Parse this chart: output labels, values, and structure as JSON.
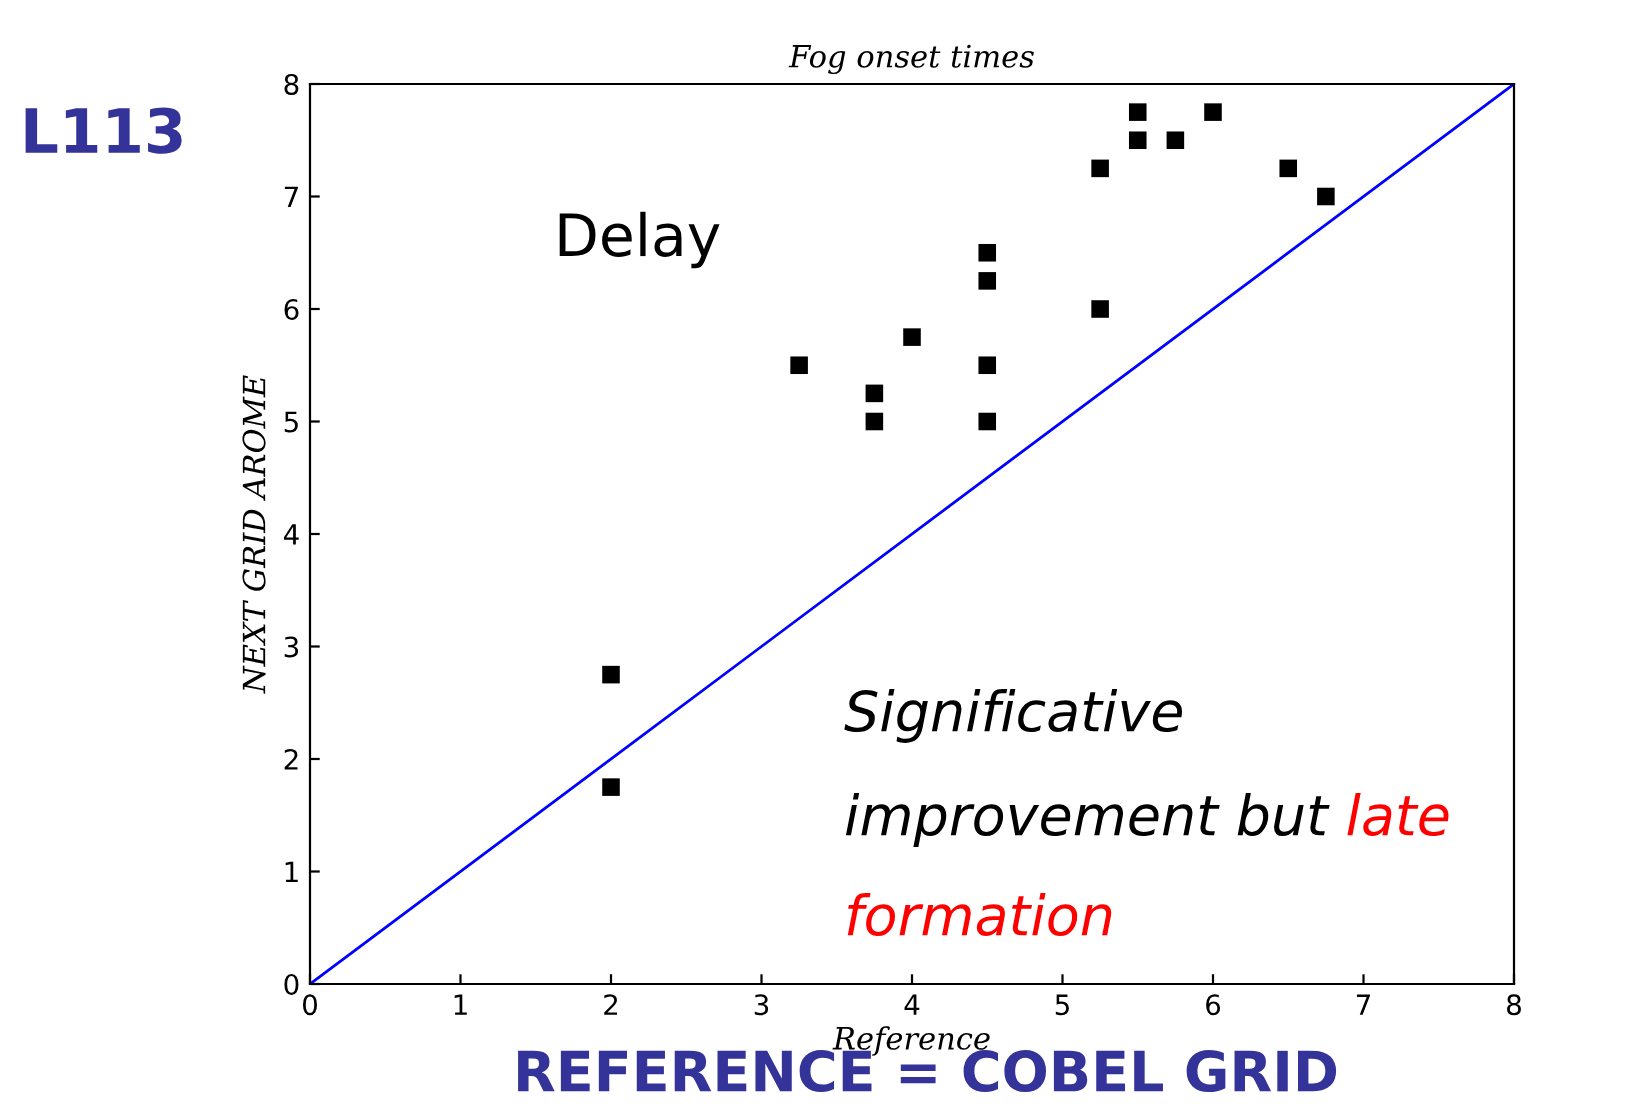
{
  "chart_data": {
    "type": "scatter",
    "title": "Fog onset times",
    "xlabel": "Reference",
    "ylabel": "NEXT GRID AROME",
    "xlim": [
      0,
      8
    ],
    "ylim": [
      0,
      8
    ],
    "xticks": [
      0,
      1,
      2,
      3,
      4,
      5,
      6,
      7,
      8
    ],
    "yticks": [
      0,
      1,
      2,
      3,
      4,
      5,
      6,
      7,
      8
    ],
    "grid": false,
    "series": [
      {
        "color": "#000000",
        "marker": "square",
        "x": [
          2,
          2,
          3.25,
          3.75,
          3.75,
          4,
          4.5,
          4.5,
          4.5,
          4.5,
          5.25,
          5.25,
          5.5,
          5.5,
          5.75,
          6,
          6.5,
          6.75
        ],
        "values": [
          2.75,
          1.75,
          5.5,
          5.25,
          5.0,
          5.75,
          6.5,
          6.25,
          5.5,
          5.0,
          7.25,
          6.0,
          7.75,
          7.5,
          7.5,
          7.75,
          7.25,
          7.0
        ]
      },
      {
        "type": "line",
        "color": "#0000ff",
        "line_style": "solid",
        "marker": "none",
        "x": [
          0,
          8
        ],
        "values": [
          0,
          8
        ]
      }
    ],
    "annotations": [
      "L113",
      "Delay",
      "Significative improvement but",
      "late formation",
      "REFERENCE = COBEL GRID"
    ]
  }
}
